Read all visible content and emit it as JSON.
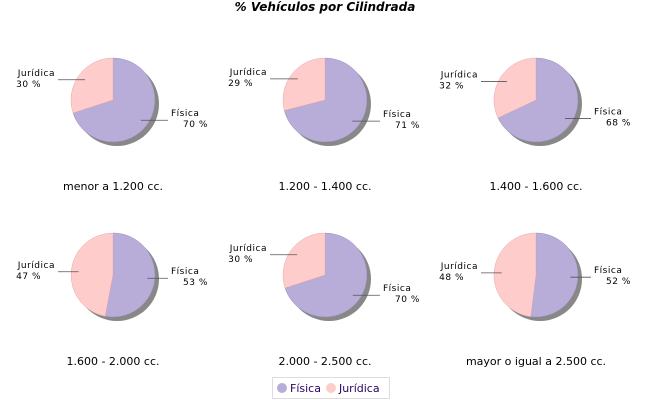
{
  "chart_data": {
    "type": "pie",
    "title": "% Vehículos por Cilindrada",
    "series_names": [
      "Física",
      "Jurídica"
    ],
    "colors": {
      "Física": "#b8acd8",
      "Jurídica": "#ffcccc",
      "shadow": "#888888"
    },
    "legend": {
      "placement": "bottom",
      "items": [
        "Física",
        "Jurídica"
      ]
    },
    "pies": [
      {
        "caption": "menor a 1.200 cc.",
        "values": {
          "Física": 70,
          "Jurídica": 30
        }
      },
      {
        "caption": "1.200 - 1.400 cc.",
        "values": {
          "Física": 71,
          "Jurídica": 29
        }
      },
      {
        "caption": "1.400 - 1.600 cc.",
        "values": {
          "Física": 68,
          "Jurídica": 32
        }
      },
      {
        "caption": "1.600 - 2.000 cc.",
        "values": {
          "Física": 53,
          "Jurídica": 47
        }
      },
      {
        "caption": "2.000 - 2.500 cc.",
        "values": {
          "Física": 70,
          "Jurídica": 30
        }
      },
      {
        "caption": "mayor o igual a 2.500 cc.",
        "values": {
          "Física": 52,
          "Jurídica": 48
        }
      }
    ]
  }
}
